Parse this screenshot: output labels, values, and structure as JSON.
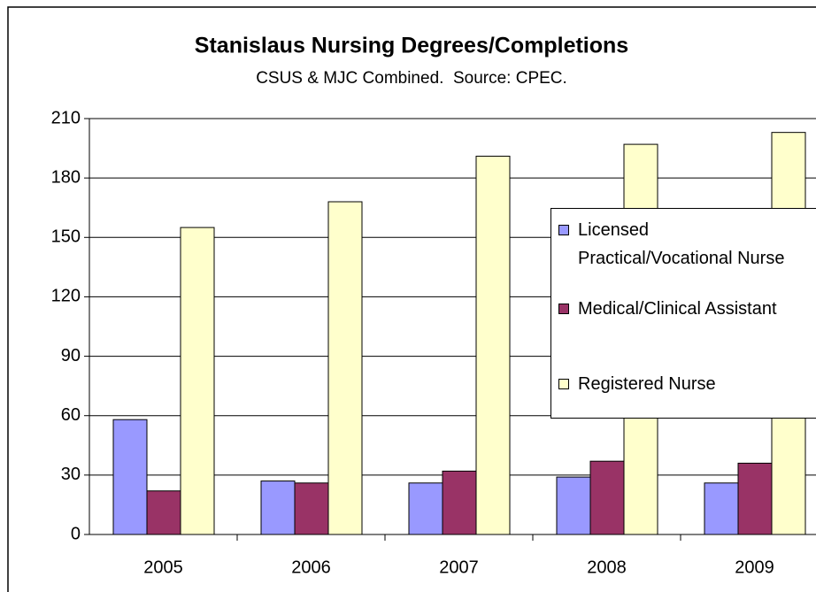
{
  "chart_data": {
    "type": "bar",
    "title": "Stanislaus Nursing Degrees/Completions",
    "subtitle": "CSUS & MJC Combined.  Source: CPEC.",
    "categories": [
      "2005",
      "2006",
      "2007",
      "2008",
      "2009"
    ],
    "series": [
      {
        "name": "Licensed Practical/Vocational Nurse",
        "color": "#9999ff",
        "values": [
          58,
          27,
          26,
          29,
          26
        ]
      },
      {
        "name": "Medical/Clinical Assistant",
        "color": "#993366",
        "values": [
          22,
          26,
          32,
          37,
          36
        ]
      },
      {
        "name": "Registered Nurse",
        "color": "#ffffcc",
        "values": [
          155,
          168,
          191,
          197,
          203
        ]
      }
    ],
    "ylim": [
      0,
      210
    ],
    "yticks": [
      0,
      30,
      60,
      90,
      120,
      150,
      180,
      210
    ],
    "grid": true,
    "legend": "right"
  }
}
